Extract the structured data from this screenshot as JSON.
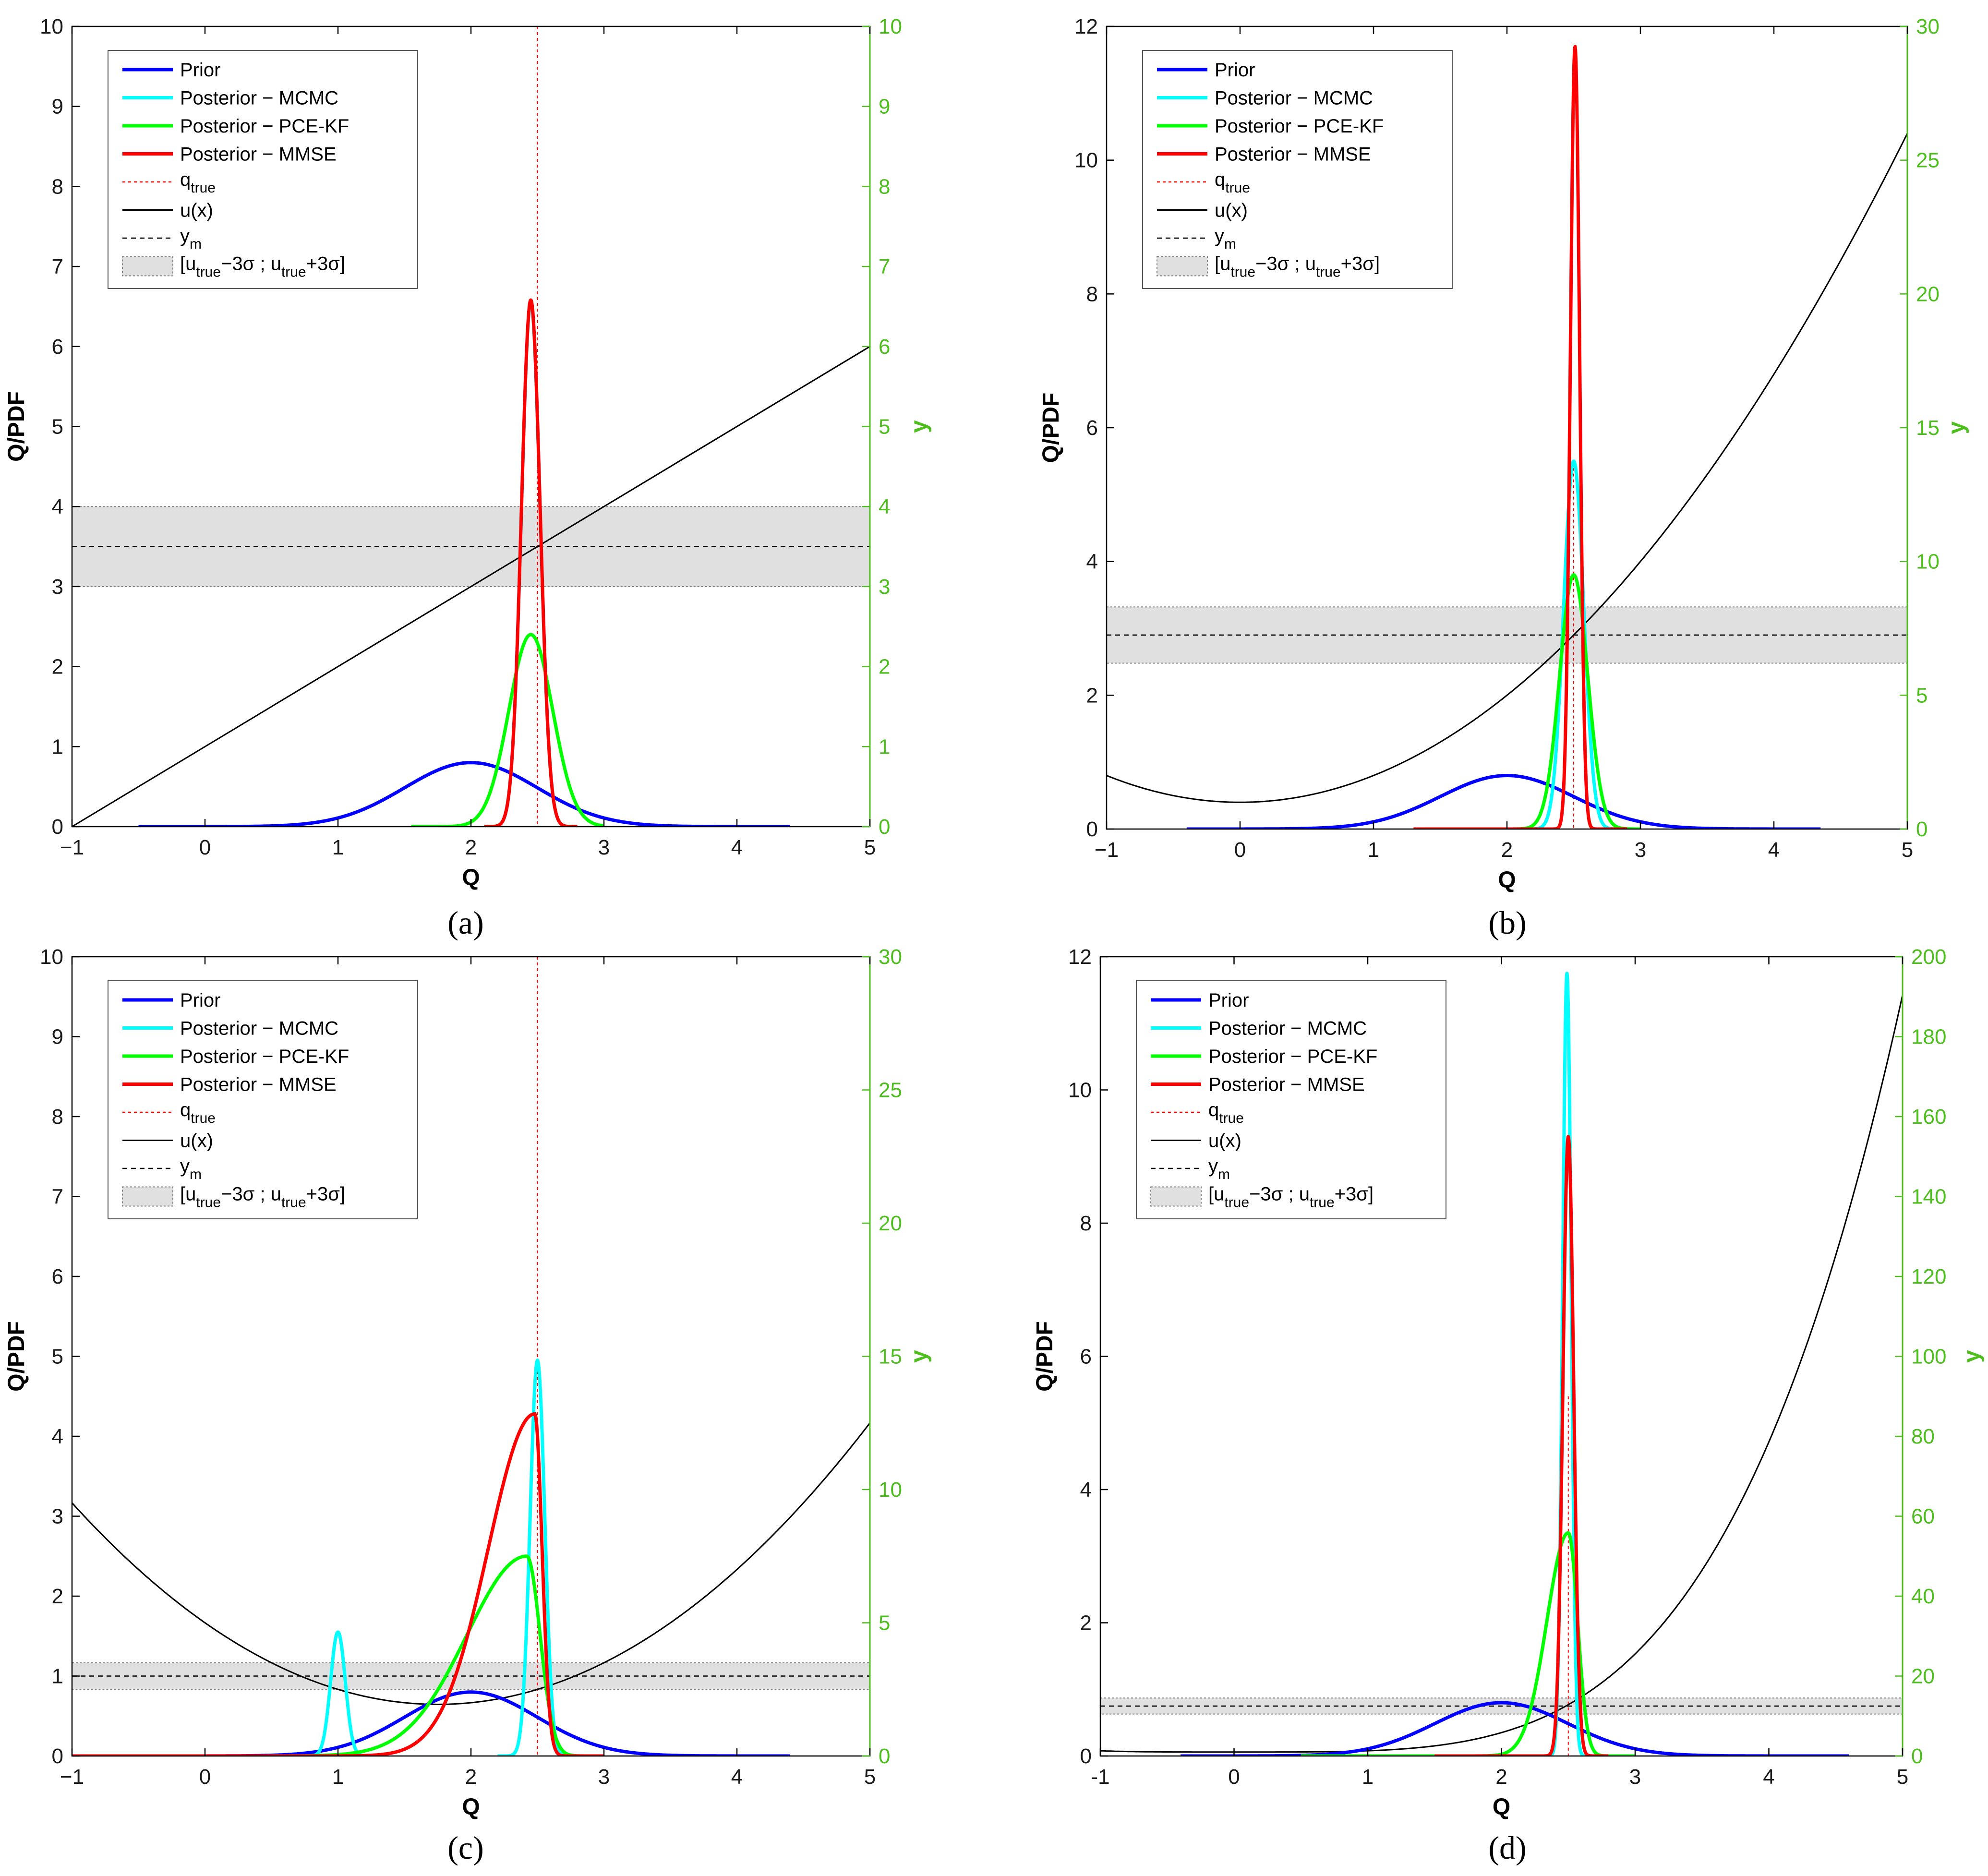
{
  "figure": {
    "colors": {
      "prior": "#0000ff",
      "mcmc": "#00ffff",
      "pcekf": "#00ff00",
      "mmse": "#ff0000",
      "qtrue": "#ff0000",
      "ux": "#000000",
      "ym": "#000000",
      "band_fill": "#e0e0e0",
      "right_axis": "#4dbe1e",
      "left_axis": "#000000"
    },
    "legend_labels": {
      "prior": "Prior",
      "mcmc": "Posterior − MCMC",
      "pcekf": "Posterior − PCE-KF",
      "mmse": "Posterior − MMSE",
      "qtrue_base": "q",
      "qtrue_sub": "true",
      "ux": "u(x)",
      "ym_base": "y",
      "ym_sub": "m",
      "band_parts": [
        "[u",
        "true",
        "−3σ ; u",
        "true",
        "+3σ]"
      ]
    }
  },
  "chart_data": [
    {
      "panel": "a",
      "caption": "(a)",
      "type": "line",
      "xlabel": "Q",
      "ylabel_left": "Q/PDF",
      "ylabel_right": "y",
      "xlim": [
        -1,
        5
      ],
      "ylim_left": [
        0,
        10
      ],
      "ylim_right": [
        0,
        10
      ],
      "xticks": [
        -1,
        0,
        1,
        2,
        3,
        4,
        5
      ],
      "yticks_left": [
        0,
        1,
        2,
        3,
        4,
        5,
        6,
        7,
        8,
        9,
        10
      ],
      "yticks_right": [
        0,
        1,
        2,
        3,
        4,
        5,
        6,
        7,
        8,
        9,
        10
      ],
      "xtick_labels": [
        "−1",
        "0",
        "1",
        "2",
        "3",
        "4",
        "5"
      ],
      "legend_position": "top-left",
      "legend_entries": [
        "prior",
        "mcmc",
        "pcekf",
        "mmse",
        "qtrue",
        "ux",
        "ym",
        "band"
      ],
      "q_true": 2.5,
      "q_true_line": "full",
      "y_m": 3.5,
      "band": [
        3.0,
        4.0
      ],
      "u_x": {
        "form": "linear",
        "slope": 1,
        "intercept": 1
      },
      "densities": [
        {
          "name": "Prior",
          "key": "prior",
          "mu": 2.0,
          "sigma": 0.5,
          "peak": 0.8,
          "support": [
            -0.5,
            4.4
          ]
        },
        {
          "name": "Posterior - MCMC",
          "key": "mcmc",
          "mu": 2.45,
          "sigma": 0.07,
          "peak": 6.55,
          "support": [
            2.1,
            2.8
          ]
        },
        {
          "name": "Posterior - PCE-KF",
          "key": "pcekf",
          "mu": 2.45,
          "sigma": 0.165,
          "peak": 2.4,
          "support": [
            1.55,
            3.0
          ]
        },
        {
          "name": "Posterior - MMSE",
          "key": "mmse",
          "mu": 2.45,
          "sigma": 0.07,
          "peak": 6.58,
          "support": [
            2.1,
            2.8
          ]
        }
      ]
    },
    {
      "panel": "b",
      "caption": "(b)",
      "type": "line",
      "xlabel": "Q",
      "ylabel_left": "Q/PDF",
      "ylabel_right": "y",
      "xlim": [
        -1,
        5
      ],
      "ylim_left": [
        0,
        12
      ],
      "ylim_right": [
        0,
        30
      ],
      "xticks": [
        -1,
        0,
        1,
        2,
        3,
        4,
        5
      ],
      "yticks_left": [
        0,
        2,
        4,
        6,
        8,
        10,
        12
      ],
      "yticks_right": [
        0,
        5,
        10,
        15,
        20,
        25,
        30
      ],
      "xtick_labels": [
        "−1",
        "0",
        "1",
        "2",
        "3",
        "4",
        "5"
      ],
      "legend_position": "top-left",
      "legend_entries": [
        "prior",
        "mcmc",
        "pcekf",
        "mmse",
        "qtrue",
        "ux",
        "ym",
        "band"
      ],
      "q_true": 2.5,
      "q_true_line": "short",
      "y_m": 7.25,
      "band": [
        6.2,
        8.3
      ],
      "u_x": {
        "form": "quadratic",
        "a": 1,
        "b": 0,
        "c": 1
      },
      "densities": [
        {
          "name": "Prior",
          "key": "prior",
          "mu": 2.0,
          "sigma": 0.5,
          "peak": 0.8,
          "support": [
            -0.4,
            4.35
          ]
        },
        {
          "name": "Posterior - MCMC",
          "key": "mcmc",
          "mu": 2.5,
          "sigma": 0.075,
          "peak": 5.5,
          "support": [
            2.05,
            2.95
          ]
        },
        {
          "name": "Posterior - PCE-KF",
          "key": "pcekf",
          "mu": 2.5,
          "sigma": 0.105,
          "peak": 3.8,
          "support": [
            1.3,
            3.0
          ]
        },
        {
          "name": "Posterior - MMSE",
          "key": "mmse",
          "mu": 2.51,
          "sigma": 0.035,
          "peak": 11.7,
          "support": [
            1.3,
            2.9
          ]
        }
      ]
    },
    {
      "panel": "c",
      "caption": "(c)",
      "type": "line",
      "xlabel": "Q",
      "ylabel_left": "Q/PDF",
      "ylabel_right": "y",
      "xlim": [
        -1,
        5
      ],
      "ylim_left": [
        0,
        10
      ],
      "ylim_right": [
        0,
        30
      ],
      "xticks": [
        -1,
        0,
        1,
        2,
        3,
        4,
        5
      ],
      "yticks_left": [
        0,
        1,
        2,
        3,
        4,
        5,
        6,
        7,
        8,
        9,
        10
      ],
      "yticks_right": [
        0,
        5,
        10,
        15,
        20,
        25,
        30
      ],
      "xtick_labels": [
        "−1",
        "0",
        "1",
        "2",
        "3",
        "4",
        "5"
      ],
      "legend_position": "top-left",
      "legend_entries": [
        "prior",
        "mcmc",
        "pcekf",
        "mmse",
        "qtrue",
        "ux",
        "ym",
        "band"
      ],
      "q_true": 2.5,
      "q_true_line": "full",
      "y_m": 3.0,
      "band": [
        2.5,
        3.5
      ],
      "u_x": {
        "form": "quadratic",
        "a": 1,
        "b": -3.5,
        "c": 5
      },
      "densities": [
        {
          "name": "Prior",
          "key": "prior",
          "mu": 2.0,
          "sigma": 0.5,
          "peak": 0.8,
          "support": [
            -1.0,
            4.4
          ]
        },
        {
          "name": "Posterior - MCMC (mode 1)",
          "key": "mcmc",
          "mu": 1.0,
          "sigma": 0.055,
          "peak": 1.55,
          "support": [
            0.7,
            1.35
          ]
        },
        {
          "name": "Posterior - MCMC (mode 2)",
          "key": "mcmc",
          "mu": 2.5,
          "sigma": 0.055,
          "peak": 4.95,
          "support": [
            2.2,
            2.8
          ]
        },
        {
          "name": "Posterior - PCE-KF",
          "key": "pcekf",
          "mode": "skewed",
          "mu": 2.42,
          "sigma_left": 0.45,
          "sigma_right": 0.1,
          "peak": 2.5,
          "support": [
            -1.0,
            3.0
          ]
        },
        {
          "name": "Posterior - MMSE",
          "key": "mmse",
          "mode": "skewed",
          "mu": 2.48,
          "sigma_left": 0.35,
          "sigma_right": 0.055,
          "peak": 4.28,
          "support": [
            -1.0,
            3.0
          ]
        }
      ]
    },
    {
      "panel": "d",
      "caption": "(d)",
      "type": "line",
      "xlabel": "Q",
      "ylabel_left": "Q/PDF",
      "ylabel_right": "y",
      "xlim": [
        -1,
        5
      ],
      "ylim_left": [
        0,
        12
      ],
      "ylim_right": [
        0,
        200
      ],
      "xticks": [
        -1,
        0,
        1,
        2,
        3,
        4,
        5
      ],
      "yticks_left": [
        0,
        2,
        4,
        6,
        8,
        10,
        12
      ],
      "yticks_right": [
        0,
        20,
        40,
        60,
        80,
        100,
        120,
        140,
        160,
        180,
        200
      ],
      "xtick_labels": [
        "-1",
        "0",
        "1",
        "2",
        "3",
        "4",
        "5"
      ],
      "legend_position": "top-left",
      "legend_entries": [
        "prior",
        "mcmc",
        "pcekf",
        "mmse",
        "qtrue",
        "ux",
        "ym",
        "band"
      ],
      "q_true": 2.5,
      "q_true_line": "short",
      "y_m": 12.5,
      "band": [
        10.5,
        14.5
      ],
      "u_x": {
        "form": "quartic",
        "c": 1
      },
      "densities": [
        {
          "name": "Prior",
          "key": "prior",
          "mu": 2.0,
          "sigma": 0.5,
          "peak": 0.8,
          "support": [
            -0.4,
            4.6
          ]
        },
        {
          "name": "Posterior - MCMC",
          "key": "mcmc",
          "mu": 2.49,
          "sigma": 0.032,
          "peak": 11.75,
          "support": [
            2.2,
            2.8
          ]
        },
        {
          "name": "Posterior - PCE-KF",
          "key": "pcekf",
          "mode": "skewed",
          "mu": 2.5,
          "sigma_left": 0.16,
          "sigma_right": 0.07,
          "peak": 3.35,
          "support": [
            0.5,
            3.0
          ]
        },
        {
          "name": "Posterior - MMSE",
          "key": "mmse",
          "mu": 2.5,
          "sigma": 0.04,
          "peak": 9.3,
          "support": [
            1.5,
            2.8
          ]
        }
      ]
    }
  ]
}
